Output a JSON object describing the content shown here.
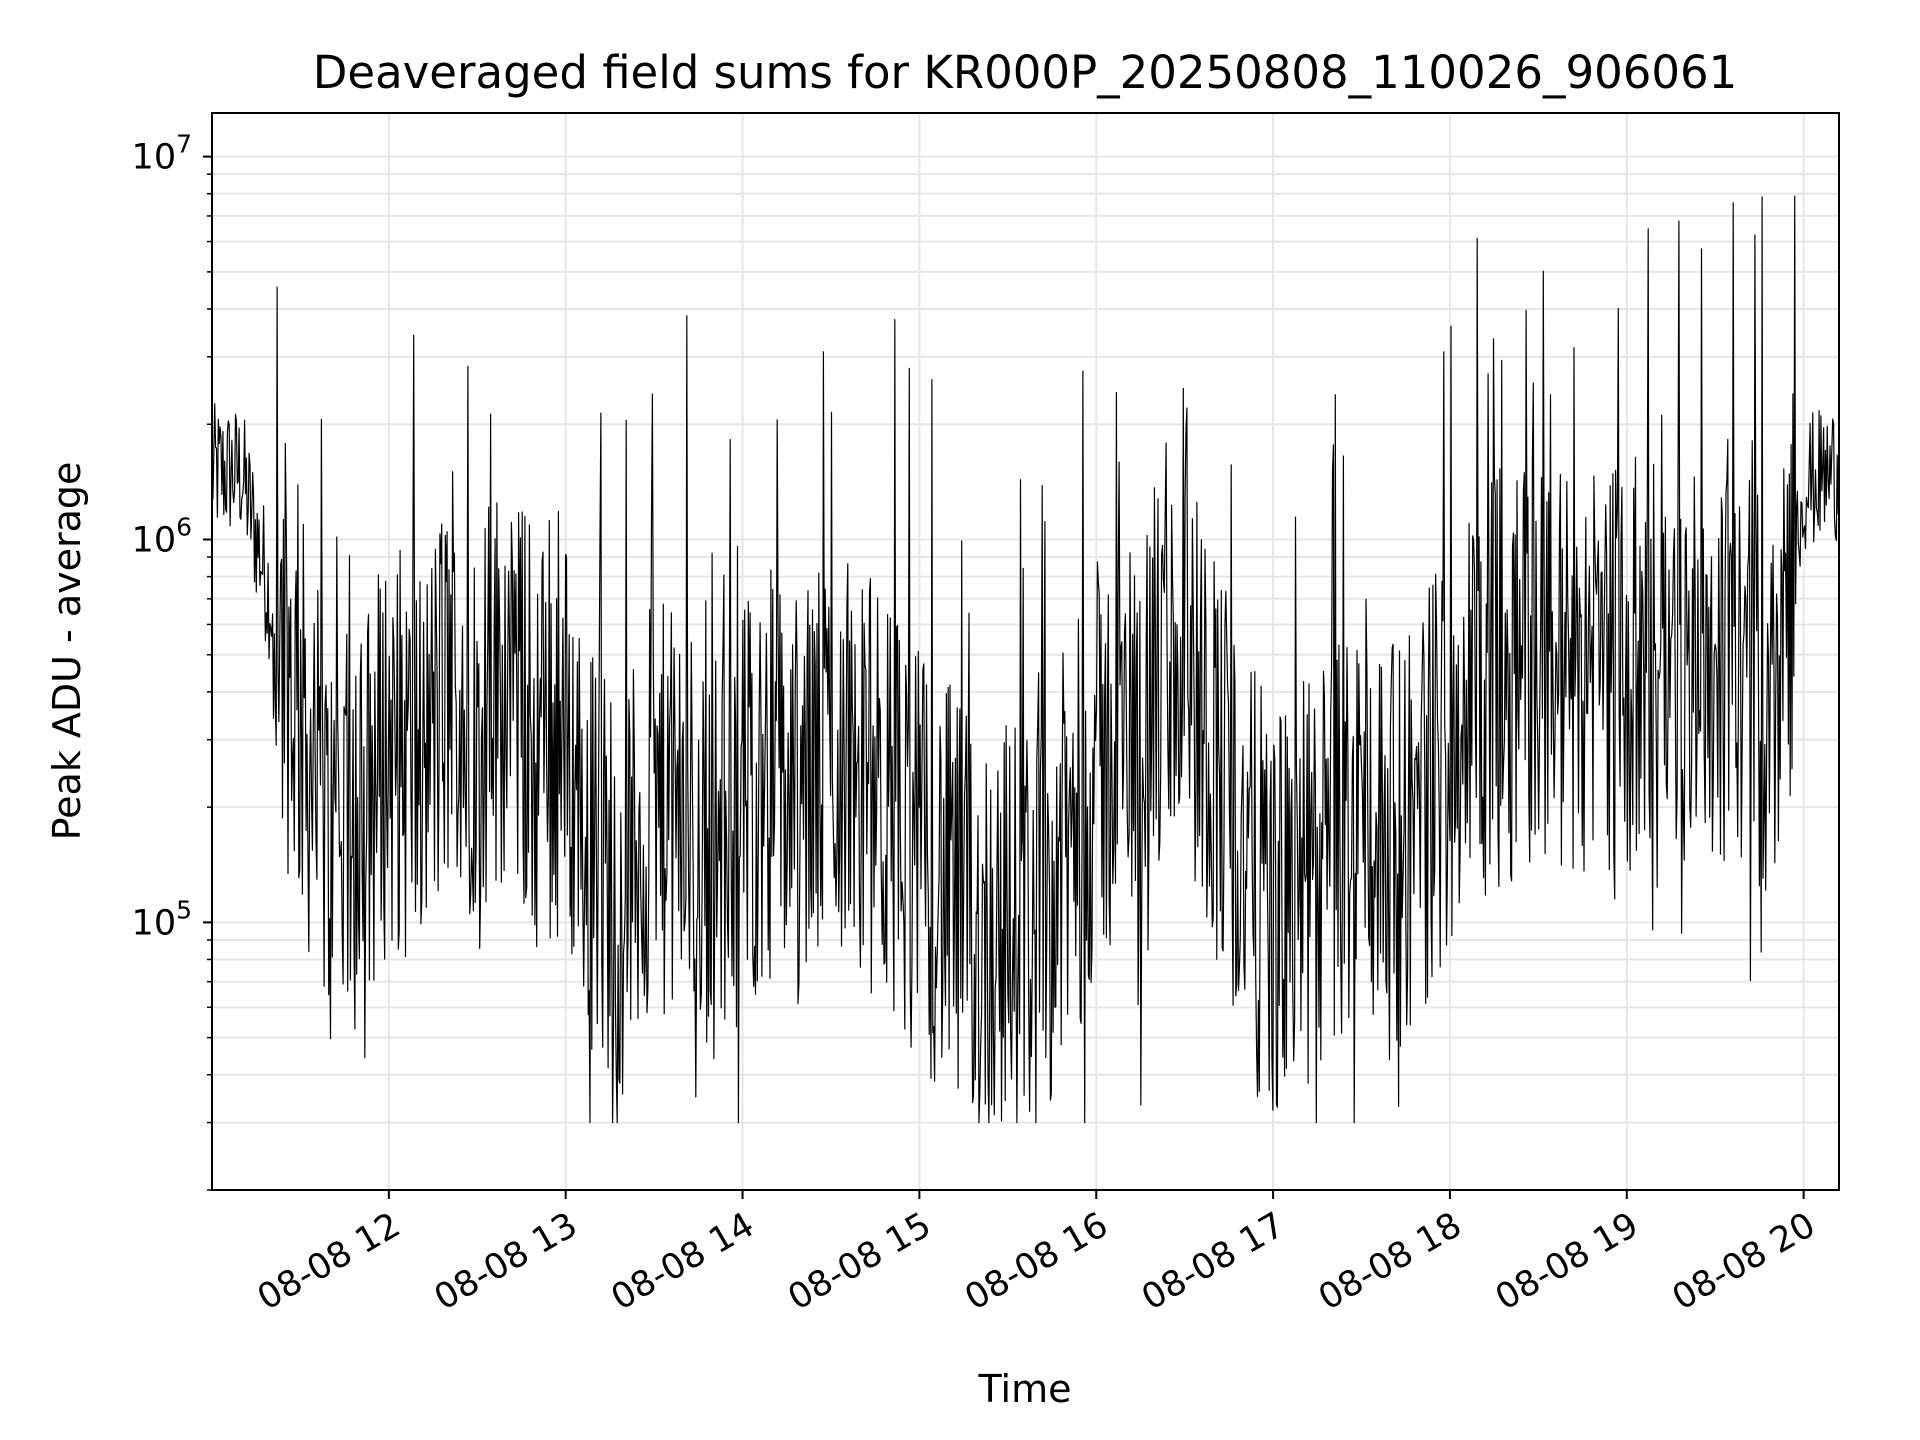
{
  "chart_data": {
    "type": "line",
    "title": "Deaveraged field sums for KR000P_20250808_110026_906061",
    "xlabel": "Time",
    "ylabel": "Peak ADU - average",
    "yscale": "log",
    "ylim": [
      20000,
      13000000
    ],
    "xlim": [
      "08-08 11:00",
      "08-08 20:12"
    ],
    "grid": true,
    "x_tick_labels": [
      "08-08 12",
      "08-08 13",
      "08-08 14",
      "08-08 15",
      "08-08 16",
      "08-08 17",
      "08-08 18",
      "08-08 19",
      "08-08 20"
    ],
    "y_tick_labels": [
      {
        "base": "10",
        "exp": "5",
        "value": 100000
      },
      {
        "base": "10",
        "exp": "6",
        "value": 1000000
      },
      {
        "base": "10",
        "exp": "7",
        "value": 10000000
      }
    ],
    "line_color": "#000000",
    "grid_color": "#e6e6e6",
    "series": [
      {
        "x": [
          "08-08 11:00",
          "08-08 11:10",
          "08-08 11:20",
          "08-08 11:30",
          "08-08 11:40",
          "08-08 11:50",
          "08-08 12:00",
          "08-08 12:10",
          "08-08 12:20",
          "08-08 12:30",
          "08-08 12:40",
          "08-08 12:50",
          "08-08 13:00",
          "08-08 13:10",
          "08-08 13:20",
          "08-08 13:30",
          "08-08 13:40",
          "08-08 13:50",
          "08-08 14:00",
          "08-08 14:10",
          "08-08 14:20",
          "08-08 14:30",
          "08-08 14:40",
          "08-08 14:50",
          "08-08 15:00",
          "08-08 15:10",
          "08-08 15:20",
          "08-08 15:30",
          "08-08 15:40",
          "08-08 15:50",
          "08-08 16:00",
          "08-08 16:10",
          "08-08 16:20",
          "08-08 16:30",
          "08-08 16:40",
          "08-08 16:50",
          "08-08 17:00",
          "08-08 17:10",
          "08-08 17:20",
          "08-08 17:30",
          "08-08 17:40",
          "08-08 17:50",
          "08-08 18:00",
          "08-08 18:10",
          "08-08 18:20",
          "08-08 18:30",
          "08-08 18:40",
          "08-08 18:50",
          "08-08 19:00",
          "08-08 19:10",
          "08-08 19:20",
          "08-08 19:30",
          "08-08 19:40",
          "08-08 19:50",
          "08-08 20:00",
          "08-08 20:10"
        ],
        "y": [
          1500000,
          1500000,
          700000,
          350000,
          150000,
          180000,
          300000,
          250000,
          400000,
          350000,
          450000,
          300000,
          300000,
          150000,
          120000,
          200000,
          180000,
          150000,
          200000,
          250000,
          200000,
          300000,
          250000,
          200000,
          150000,
          120000,
          90000,
          100000,
          100000,
          150000,
          250000,
          300000,
          400000,
          500000,
          300000,
          150000,
          100000,
          120000,
          150000,
          200000,
          150000,
          200000,
          300000,
          400000,
          450000,
          500000,
          450000,
          500000,
          450000,
          500000,
          450000,
          500000,
          450000,
          350000,
          1400000,
          1500000
        ]
      }
    ]
  }
}
